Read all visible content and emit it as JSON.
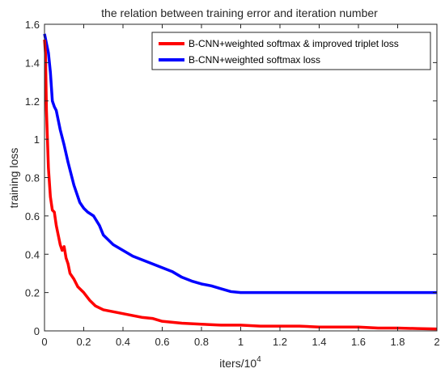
{
  "chart_data": {
    "type": "line",
    "title": "the relation between training error and iteration number",
    "xlabel": "iters/10",
    "xlabel_exponent": "4",
    "ylabel": "training loss",
    "xlim": [
      0,
      2
    ],
    "ylim": [
      0,
      1.6
    ],
    "xticks": [
      "0",
      "0.2",
      "0.4",
      "0.6",
      "0.8",
      "1",
      "1.2",
      "1.4",
      "1.6",
      "1.8",
      "2"
    ],
    "yticks": [
      "0",
      "0.2",
      "0.4",
      "0.6",
      "0.8",
      "1",
      "1.2",
      "1.4",
      "1.6"
    ],
    "grid": false,
    "legend_position": "top-right",
    "series": [
      {
        "name": "B-CNN+weighted softmax & improved triplet loss",
        "color": "#ff0000",
        "x": [
          0,
          0.005,
          0.01,
          0.02,
          0.03,
          0.04,
          0.05,
          0.06,
          0.07,
          0.08,
          0.09,
          0.1,
          0.11,
          0.12,
          0.13,
          0.15,
          0.17,
          0.2,
          0.23,
          0.26,
          0.3,
          0.35,
          0.4,
          0.45,
          0.5,
          0.55,
          0.6,
          0.7,
          0.8,
          0.9,
          1.0,
          1.1,
          1.2,
          1.3,
          1.4,
          1.5,
          1.6,
          1.7,
          1.8,
          1.9,
          2.0
        ],
        "y": [
          1.52,
          1.45,
          1.15,
          0.85,
          0.7,
          0.63,
          0.62,
          0.55,
          0.5,
          0.45,
          0.42,
          0.44,
          0.38,
          0.35,
          0.3,
          0.27,
          0.23,
          0.2,
          0.16,
          0.13,
          0.11,
          0.1,
          0.09,
          0.08,
          0.07,
          0.065,
          0.05,
          0.04,
          0.035,
          0.03,
          0.03,
          0.025,
          0.025,
          0.025,
          0.02,
          0.02,
          0.02,
          0.015,
          0.015,
          0.012,
          0.01
        ]
      },
      {
        "name": "B-CNN+weighted softmax loss",
        "color": "#0000ff",
        "x": [
          0,
          0.01,
          0.02,
          0.03,
          0.04,
          0.05,
          0.06,
          0.07,
          0.08,
          0.1,
          0.12,
          0.15,
          0.18,
          0.2,
          0.22,
          0.25,
          0.28,
          0.3,
          0.35,
          0.4,
          0.45,
          0.5,
          0.55,
          0.6,
          0.65,
          0.7,
          0.75,
          0.8,
          0.85,
          0.9,
          0.95,
          1.0,
          1.1,
          1.2,
          1.3,
          1.4,
          1.5,
          1.6,
          1.7,
          1.8,
          1.9,
          2.0
        ],
        "y": [
          1.55,
          1.5,
          1.45,
          1.35,
          1.2,
          1.17,
          1.15,
          1.1,
          1.05,
          0.97,
          0.88,
          0.76,
          0.67,
          0.64,
          0.62,
          0.6,
          0.55,
          0.5,
          0.45,
          0.42,
          0.39,
          0.37,
          0.35,
          0.33,
          0.31,
          0.28,
          0.26,
          0.245,
          0.235,
          0.22,
          0.205,
          0.2,
          0.2,
          0.2,
          0.2,
          0.2,
          0.2,
          0.2,
          0.2,
          0.2,
          0.2,
          0.2
        ]
      }
    ]
  }
}
